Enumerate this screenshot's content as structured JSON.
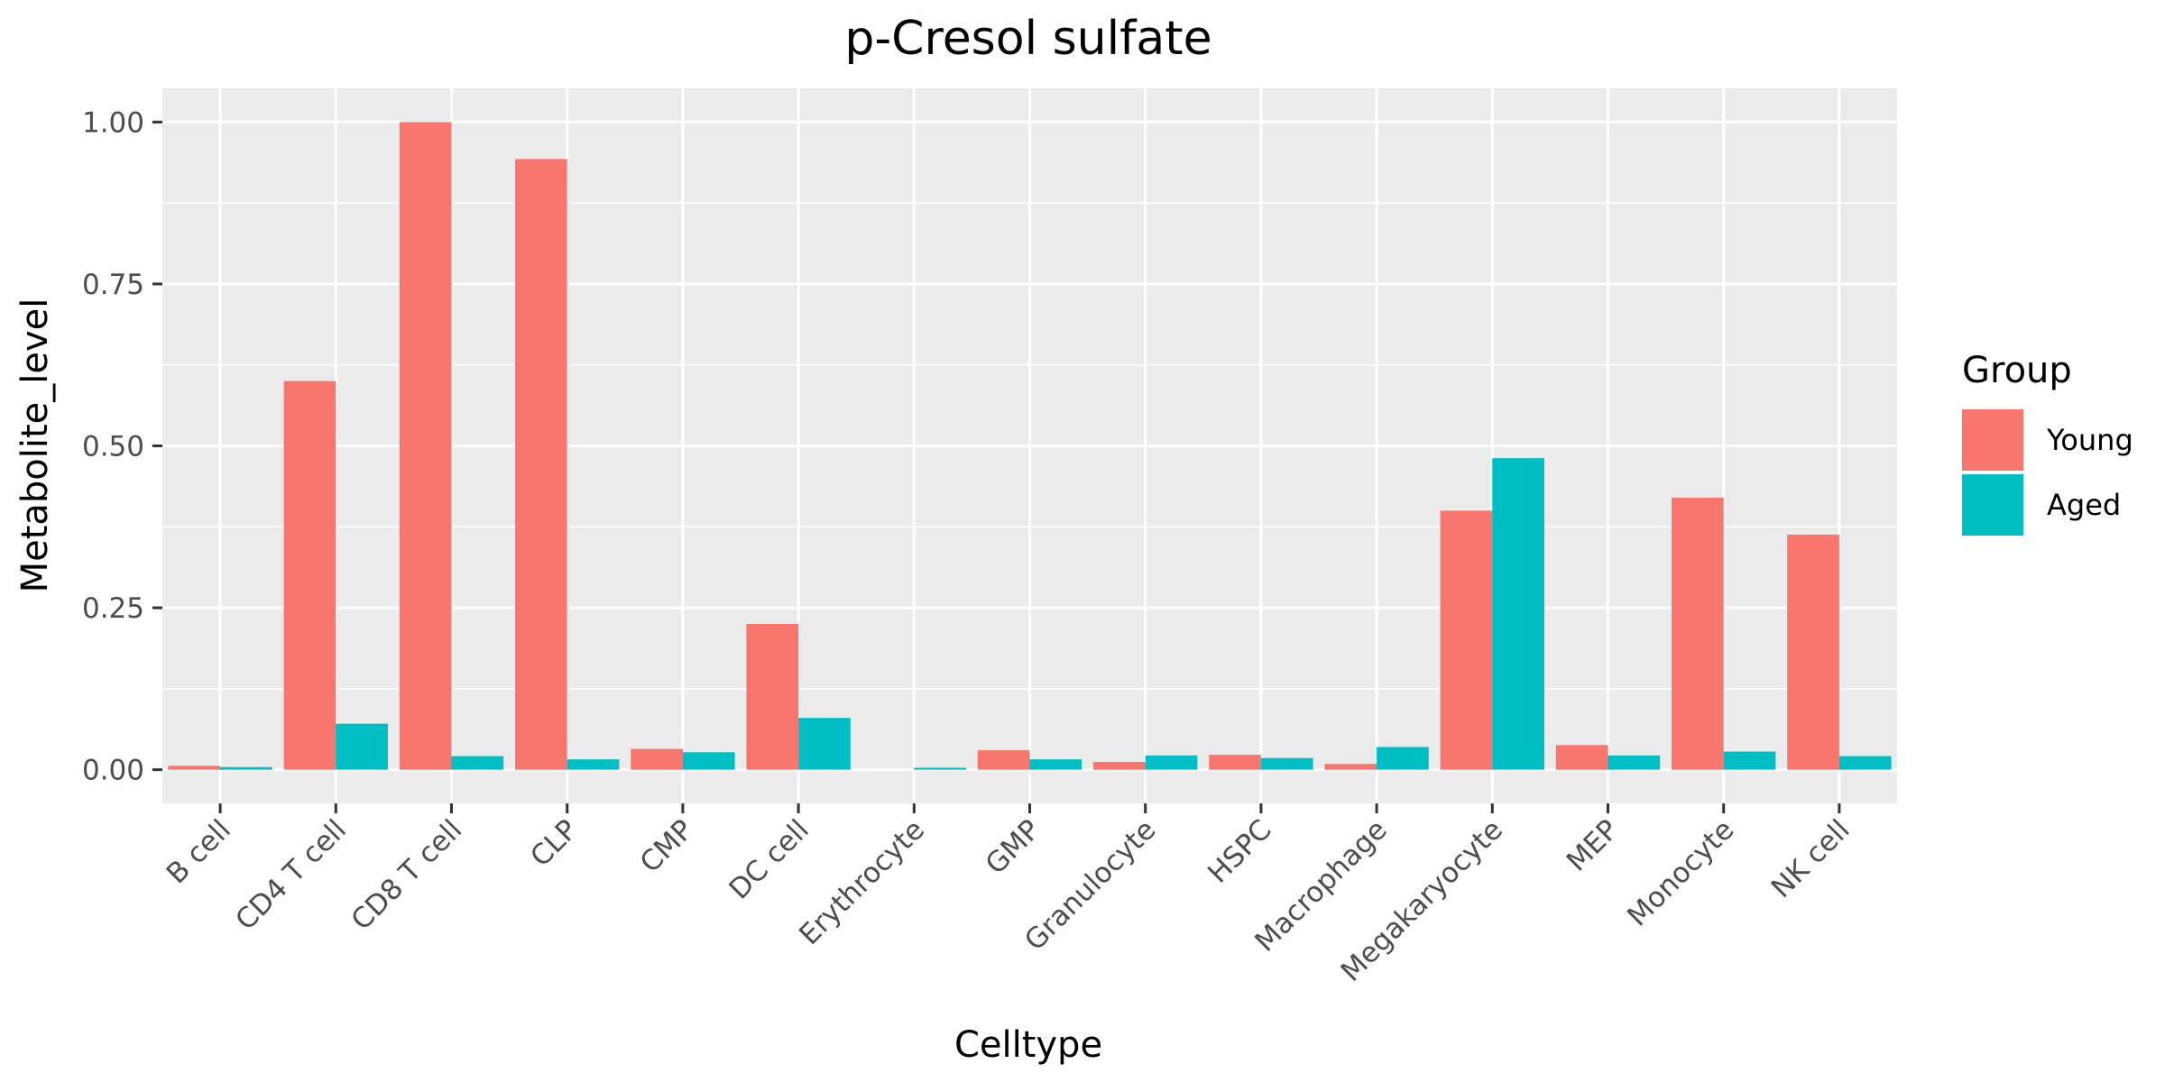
{
  "chart_data": {
    "type": "bar",
    "title": "p-Cresol sulfate",
    "xlabel": "Celltype",
    "ylabel": "Metabolite_level",
    "ylim": [
      -0.052,
      1.052
    ],
    "yticks": [
      0.0,
      0.25,
      0.5,
      0.75,
      1.0
    ],
    "ytick_labels": [
      "0.00",
      "0.25",
      "0.50",
      "0.75",
      "1.00"
    ],
    "grid": true,
    "legend": {
      "title": "Group",
      "placement": "right"
    },
    "categories": [
      "B cell",
      "CD4 T cell",
      "CD8 T cell",
      "CLP",
      "CMP",
      "DC cell",
      "Erythrocyte",
      "GMP",
      "Granulocyte",
      "HSPC",
      "Macrophage",
      "Megakaryocyte",
      "MEP",
      "Monocyte",
      "NK cell"
    ],
    "series": [
      {
        "name": "Young",
        "color": "#F8766D",
        "values": [
          0.006,
          0.6,
          1.0,
          0.943,
          0.032,
          0.225,
          0.0,
          0.03,
          0.012,
          0.023,
          0.009,
          0.4,
          0.038,
          0.42,
          0.363
        ]
      },
      {
        "name": "Aged",
        "color": "#00BFC4",
        "values": [
          0.004,
          0.071,
          0.021,
          0.016,
          0.027,
          0.08,
          0.003,
          0.016,
          0.022,
          0.018,
          0.035,
          0.481,
          0.022,
          0.028,
          0.021
        ]
      }
    ],
    "colors": {
      "panel": "#EBEBEB",
      "grid": "#FFFFFF",
      "tick": "#333333"
    }
  }
}
